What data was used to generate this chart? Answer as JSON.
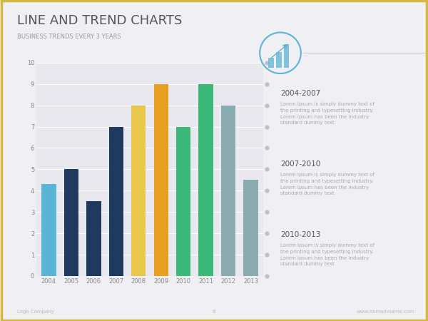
{
  "title": "LINE AND TREND CHARTS",
  "subtitle": "BUSINESS TRENDS EVERY 3 YEARS",
  "background_color": "#f0f0f4",
  "border_color": "#d4b840",
  "years": [
    "2004",
    "2005",
    "2006",
    "2007",
    "2008",
    "2009",
    "2010",
    "2011",
    "2012",
    "2013"
  ],
  "values": [
    4.3,
    5.0,
    3.5,
    7.0,
    8.0,
    9.0,
    7.0,
    9.0,
    8.0,
    4.5
  ],
  "bar_colors": [
    "#5ab4d6",
    "#1e3a5f",
    "#1e3a5f",
    "#1e3a5f",
    "#e8c84a",
    "#e8a020",
    "#3cb878",
    "#3cb878",
    "#8aabb0",
    "#8aabb0"
  ],
  "ylim": [
    0,
    10
  ],
  "yticks": [
    0,
    1,
    2,
    3,
    4,
    5,
    6,
    7,
    8,
    9,
    10
  ],
  "chart_bg": "#e8e8ee",
  "grid_color": "#ffffff",
  "sidebar_title_1": "2004-2007",
  "sidebar_text_1": "Lorem Ipsum is simply dummy text of\nthe printing and typesetting industry.\nLorem Ipsum has been the industry\nstandard dummy text",
  "sidebar_title_2": "2007-2010",
  "sidebar_text_2": "Lorem Ipsum is simply dummy text of\nthe printing and typesetting industry.\nLorem Ipsum has been the industry\nstandard dummy text",
  "sidebar_title_3": "2010-2013",
  "sidebar_text_3": "Lorem Ipsum is simply dummy text of\nthe printing and typesetting industry.\nLorem Ipsum has been the industry\nstandard dummy text",
  "footer_left": "Logo Company",
  "footer_center": "8",
  "footer_right": "www.domainname.com",
  "icon_circle_color": "#5ab4d6",
  "tick_dot_color": "#c0c0cc",
  "sidebar_title_color": "#555555",
  "sidebar_text_color": "#aaaaaa",
  "title_color": "#555555",
  "subtitle_color": "#999999",
  "line_color": "#d0d0c0"
}
